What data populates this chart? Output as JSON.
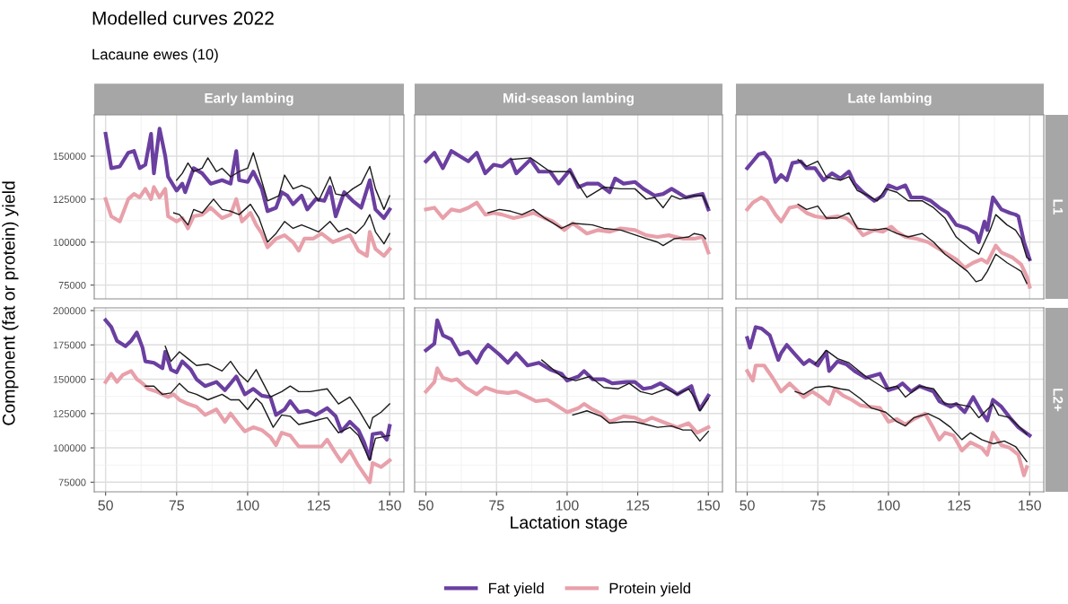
{
  "chart_data": [
    {
      "type": "line",
      "title": "Early lambing",
      "annotations": [
        "Modelled curves 2022",
        "Lacaune ewes (10)"
      ],
      "ylabel": "Component (fat or protein) yield",
      "xlim": [
        46,
        155
      ],
      "ylim": [
        67000,
        174000
      ],
      "xticks": [
        50,
        75,
        100,
        125,
        150
      ],
      "yticks": [
        75000,
        100000,
        125000,
        150000
      ],
      "tick_labels": "y",
      "grid": true,
      "series": [
        {
          "color": "#6b3fa0",
          "x": [
            50,
            52,
            55,
            58,
            60,
            62,
            64,
            66,
            67,
            69,
            71,
            72,
            75,
            77,
            78,
            81,
            84,
            87,
            91,
            94,
            96,
            97,
            100,
            102,
            105,
            107,
            110,
            112,
            114,
            116,
            119,
            121,
            124,
            127,
            129,
            131,
            134,
            137,
            140,
            143,
            145,
            148,
            150
          ],
          "values": [
            163000,
            143000,
            144000,
            152000,
            153000,
            143000,
            145000,
            163000,
            140000,
            166000,
            150000,
            138000,
            130000,
            134000,
            129000,
            143000,
            140000,
            134000,
            136000,
            134000,
            153000,
            136000,
            135000,
            141000,
            131000,
            118000,
            120000,
            129000,
            127000,
            122000,
            127000,
            119000,
            125000,
            124000,
            132000,
            115000,
            129000,
            124000,
            120000,
            136000,
            119000,
            114000,
            119000
          ]
        },
        {
          "color": "#e8a0aa",
          "x": [
            50,
            52,
            55,
            58,
            60,
            62,
            64,
            66,
            67,
            69,
            71,
            72,
            75,
            77,
            79,
            81,
            84,
            87,
            91,
            94,
            96,
            98,
            101,
            103,
            105,
            107,
            110,
            113,
            116,
            118,
            120,
            123,
            126,
            130,
            133,
            136,
            139,
            142,
            143,
            145,
            148,
            150
          ],
          "values": [
            125000,
            115000,
            112000,
            125000,
            128000,
            126000,
            131000,
            125000,
            132000,
            126000,
            131000,
            115000,
            112000,
            114000,
            108000,
            115000,
            116000,
            120000,
            114000,
            116000,
            125000,
            112000,
            117000,
            110000,
            105000,
            97000,
            102000,
            104000,
            100000,
            95000,
            102000,
            102000,
            105000,
            100000,
            102000,
            104000,
            95000,
            92000,
            106000,
            96000,
            92000,
            96000
          ]
        },
        {
          "color": "#1a1a1a",
          "x": [
            75,
            77,
            79,
            81,
            84,
            86,
            89,
            91,
            94,
            97,
            100,
            102,
            104,
            107,
            111,
            113,
            116,
            119,
            122,
            125,
            129,
            131,
            134,
            137,
            140,
            143,
            145,
            148,
            150
          ],
          "values": [
            136000,
            140000,
            146000,
            141000,
            143000,
            149000,
            141000,
            143000,
            138000,
            141000,
            143000,
            152000,
            141000,
            124000,
            127000,
            139000,
            131000,
            133000,
            131000,
            124000,
            138000,
            128000,
            127000,
            131000,
            134000,
            144000,
            131000,
            119000,
            127000
          ]
        },
        {
          "color": "#1a1a1a",
          "x": [
            74,
            76,
            79,
            81,
            84,
            88,
            91,
            94,
            97,
            101,
            104,
            107,
            110,
            113,
            116,
            119,
            122,
            125,
            129,
            132,
            135,
            138,
            141,
            143,
            145,
            148,
            150
          ],
          "values": [
            117000,
            116000,
            110000,
            119000,
            117000,
            125000,
            119000,
            118000,
            116000,
            122000,
            114000,
            100000,
            105000,
            112000,
            108000,
            110000,
            108000,
            106000,
            112000,
            106000,
            108000,
            105000,
            110000,
            116000,
            106000,
            99000,
            105000
          ]
        }
      ]
    },
    {
      "type": "line",
      "title": "Mid-season lambing",
      "xlim": [
        46,
        155
      ],
      "ylim": [
        67000,
        174000
      ],
      "xticks": [
        50,
        75,
        100,
        125,
        150
      ],
      "yticks": [
        75000,
        100000,
        125000,
        150000
      ],
      "tick_labels": false,
      "grid": true,
      "series": [
        {
          "color": "#6b3fa0",
          "x": [
            50,
            53,
            56,
            59,
            62,
            65,
            68,
            71,
            74,
            77,
            80,
            82,
            87,
            90,
            94,
            97,
            101,
            104,
            107,
            111,
            115,
            117,
            120,
            124,
            127,
            131,
            134,
            137,
            142,
            145,
            148,
            150
          ],
          "values": [
            147000,
            152000,
            143000,
            153000,
            150000,
            147000,
            152000,
            140000,
            145000,
            144000,
            148000,
            140000,
            148000,
            141000,
            141000,
            134000,
            142000,
            132000,
            134000,
            134000,
            129000,
            137000,
            134000,
            135000,
            131000,
            127000,
            128000,
            131000,
            126000,
            127000,
            128000,
            119000
          ]
        },
        {
          "color": "#e8a0aa",
          "x": [
            50,
            53,
            56,
            59,
            62,
            65,
            68,
            71,
            74,
            77,
            81,
            84,
            88,
            92,
            95,
            99,
            102,
            107,
            111,
            115,
            119,
            124,
            128,
            132,
            136,
            141,
            145,
            148,
            150
          ],
          "values": [
            119000,
            120000,
            114000,
            119000,
            118000,
            120000,
            123000,
            116000,
            117000,
            116000,
            114000,
            115000,
            117000,
            114000,
            112000,
            107000,
            111000,
            105000,
            107000,
            106000,
            108000,
            107000,
            104000,
            103000,
            104000,
            102000,
            102000,
            103000,
            94000
          ]
        },
        {
          "color": "#1a1a1a",
          "x": [
            80,
            87,
            94,
            101,
            107,
            113,
            119,
            124,
            128,
            131,
            134,
            137,
            140,
            145,
            148,
            150
          ],
          "values": [
            148000,
            149000,
            141000,
            141000,
            126000,
            132000,
            131000,
            131000,
            125000,
            126000,
            120000,
            127000,
            125000,
            127000,
            127000,
            120000
          ]
        },
        {
          "color": "#1a1a1a",
          "x": [
            72,
            76,
            80,
            84,
            88,
            92,
            98,
            102,
            109,
            113,
            119,
            128,
            132,
            134,
            138,
            143,
            145,
            148,
            149
          ],
          "values": [
            117000,
            119000,
            118000,
            116000,
            119000,
            114000,
            108000,
            111000,
            110000,
            108000,
            107000,
            102000,
            100000,
            98000,
            102000,
            103000,
            105000,
            104000,
            102000
          ]
        }
      ]
    },
    {
      "type": "line",
      "title": "Late lambing",
      "annotations": [
        "L1"
      ],
      "xlim": [
        46,
        155
      ],
      "ylim": [
        67000,
        174000
      ],
      "xticks": [
        50,
        75,
        100,
        125,
        150
      ],
      "yticks": [
        75000,
        100000,
        125000,
        150000
      ],
      "tick_labels": false,
      "grid": true,
      "series": [
        {
          "color": "#6b3fa0",
          "x": [
            50,
            52,
            54,
            56,
            58,
            60,
            62,
            64,
            66,
            69,
            71,
            74,
            77,
            80,
            83,
            86,
            88,
            91,
            95,
            98,
            100,
            103,
            106,
            108,
            112,
            115,
            118,
            121,
            124,
            128,
            131,
            132,
            134,
            135,
            137,
            140,
            143,
            145,
            146,
            148,
            150
          ],
          "values": [
            143000,
            147000,
            151000,
            152000,
            148000,
            135000,
            139000,
            136000,
            146000,
            147000,
            143000,
            143000,
            136000,
            140000,
            137000,
            141000,
            134000,
            129000,
            124000,
            127000,
            133000,
            131000,
            133000,
            126000,
            126000,
            124000,
            120000,
            117000,
            110000,
            108000,
            105000,
            100000,
            112000,
            107000,
            126000,
            119000,
            117000,
            116000,
            115000,
            100000,
            90000
          ]
        },
        {
          "color": "#e8a0aa",
          "x": [
            50,
            52,
            55,
            57,
            60,
            62,
            65,
            68,
            71,
            74,
            78,
            82,
            85,
            88,
            91,
            95,
            98,
            101,
            103,
            106,
            110,
            114,
            118,
            121,
            124,
            127,
            130,
            133,
            135,
            138,
            140,
            144,
            147,
            149,
            150
          ],
          "values": [
            119000,
            123000,
            126000,
            124000,
            116000,
            112000,
            120000,
            121000,
            117000,
            115000,
            114000,
            115000,
            114000,
            110000,
            104000,
            107000,
            106000,
            109000,
            106000,
            103000,
            102000,
            100000,
            96000,
            93000,
            90000,
            85000,
            88000,
            90000,
            88000,
            98000,
            94000,
            91000,
            87000,
            80000,
            74000
          ]
        },
        {
          "color": "#1a1a1a",
          "x": [
            68,
            71,
            75,
            78,
            83,
            86,
            89,
            93,
            96,
            99,
            103,
            107,
            112,
            116,
            120,
            124,
            129,
            132,
            134,
            136,
            138,
            142,
            145,
            147,
            149,
            150
          ],
          "values": [
            148000,
            144000,
            147000,
            138000,
            136000,
            138000,
            130000,
            127000,
            124000,
            131000,
            129000,
            124000,
            124000,
            120000,
            114000,
            103000,
            96000,
            93000,
            100000,
            107000,
            116000,
            110000,
            107000,
            102000,
            91000,
            90000
          ]
        },
        {
          "color": "#1a1a1a",
          "x": [
            68,
            71,
            75,
            78,
            82,
            86,
            89,
            95,
            99,
            103,
            107,
            112,
            116,
            120,
            124,
            128,
            131,
            133,
            135,
            138,
            142,
            145,
            147,
            149
          ],
          "values": [
            122000,
            119000,
            121000,
            114000,
            114000,
            117000,
            108000,
            107000,
            108000,
            105000,
            103000,
            105000,
            100000,
            93000,
            88000,
            83000,
            77000,
            78000,
            83000,
            93000,
            88000,
            85000,
            83000,
            76000
          ]
        }
      ]
    },
    {
      "type": "line",
      "xlim": [
        46,
        155
      ],
      "ylim": [
        68000,
        202000
      ],
      "xticks": [
        50,
        75,
        100,
        125,
        150
      ],
      "yticks": [
        75000,
        100000,
        125000,
        150000,
        175000,
        200000
      ],
      "grid": true,
      "series": [
        {
          "color": "#6b3fa0",
          "x": [
            50,
            52,
            54,
            57,
            59,
            61,
            63,
            64,
            67,
            70,
            71,
            73,
            75,
            77,
            80,
            82,
            85,
            89,
            92,
            96,
            99,
            102,
            105,
            108,
            110,
            113,
            115,
            118,
            121,
            124,
            128,
            131,
            133,
            136,
            139,
            141,
            143,
            144,
            147,
            149,
            150
          ],
          "values": [
            193000,
            188000,
            178000,
            174000,
            178000,
            184000,
            173000,
            163000,
            162000,
            158000,
            170000,
            157000,
            155000,
            163000,
            157000,
            150000,
            145000,
            148000,
            142000,
            152000,
            139000,
            143000,
            138000,
            137000,
            124000,
            128000,
            134000,
            126000,
            127000,
            124000,
            129000,
            123000,
            112000,
            119000,
            113000,
            104000,
            92000,
            110000,
            111000,
            106000,
            116000
          ]
        },
        {
          "color": "#e8a0aa",
          "x": [
            50,
            52,
            54,
            56,
            59,
            61,
            63,
            65,
            68,
            72,
            74,
            76,
            79,
            82,
            85,
            89,
            92,
            94,
            97,
            99,
            102,
            105,
            108,
            110,
            112,
            115,
            118,
            122,
            126,
            128,
            131,
            133,
            136,
            139,
            143,
            144,
            147,
            150
          ],
          "values": [
            148000,
            154000,
            148000,
            153000,
            156000,
            150000,
            147000,
            143000,
            141000,
            137000,
            139000,
            135000,
            132000,
            130000,
            124000,
            128000,
            119000,
            125000,
            117000,
            112000,
            115000,
            113000,
            108000,
            102000,
            111000,
            109000,
            101000,
            101000,
            101000,
            106000,
            96000,
            90000,
            98000,
            87000,
            75000,
            89000,
            86000,
            91000
          ]
        },
        {
          "color": "#1a1a1a",
          "x": [
            71,
            73,
            76,
            79,
            82,
            86,
            91,
            94,
            97,
            100,
            103,
            108,
            112,
            115,
            118,
            122,
            128,
            132,
            136,
            139,
            143,
            144,
            147,
            150
          ],
          "values": [
            174000,
            163000,
            170000,
            165000,
            160000,
            161000,
            156000,
            163000,
            154000,
            148000,
            157000,
            137000,
            141000,
            145000,
            141000,
            141000,
            143000,
            132000,
            137000,
            128000,
            114000,
            122000,
            126000,
            132000
          ]
        },
        {
          "color": "#1a1a1a",
          "x": [
            64,
            67,
            70,
            73,
            76,
            79,
            82,
            86,
            91,
            94,
            97,
            100,
            103,
            105,
            109,
            112,
            115,
            118,
            122,
            128,
            132,
            136,
            139,
            143,
            145,
            150
          ],
          "values": [
            145000,
            145000,
            139000,
            140000,
            147000,
            141000,
            139000,
            135000,
            139000,
            135000,
            135000,
            128000,
            136000,
            132000,
            115000,
            124000,
            123000,
            117000,
            119000,
            122000,
            111000,
            115000,
            109000,
            91000,
            107000,
            109000
          ]
        }
      ]
    },
    {
      "type": "line",
      "xlabel": "Lactation stage",
      "legend": "bottom",
      "xlim": [
        46,
        155
      ],
      "ylim": [
        68000,
        202000
      ],
      "xticks": [
        50,
        75,
        100,
        125,
        150
      ],
      "yticks": [
        75000,
        100000,
        125000,
        150000,
        175000,
        200000
      ],
      "tick_labels": "x",
      "grid": true,
      "series": [
        {
          "name": "Fat yield",
          "color": "#6b3fa0",
          "x": [
            50,
            53,
            54,
            56,
            59,
            62,
            65,
            68,
            70,
            72,
            76,
            79,
            82,
            86,
            90,
            94,
            98,
            100,
            104,
            106,
            109,
            113,
            116,
            121,
            124,
            127,
            130,
            133,
            137,
            139,
            144,
            145,
            147,
            150
          ],
          "values": [
            171000,
            176000,
            193000,
            182000,
            179000,
            168000,
            170000,
            162000,
            170000,
            175000,
            168000,
            162000,
            169000,
            160000,
            162000,
            157000,
            154000,
            149000,
            152000,
            156000,
            150000,
            150000,
            147000,
            148000,
            148000,
            143000,
            144000,
            147000,
            142000,
            139000,
            145000,
            138000,
            128000,
            138000
          ]
        },
        {
          "name": "Protein yield",
          "color": "#e8a0aa",
          "x": [
            50,
            53,
            54,
            56,
            59,
            61,
            64,
            68,
            71,
            75,
            79,
            82,
            86,
            89,
            93,
            97,
            100,
            104,
            106,
            109,
            112,
            115,
            120,
            124,
            127,
            130,
            135,
            139,
            143,
            146,
            150
          ],
          "values": [
            141000,
            148000,
            158000,
            151000,
            149000,
            150000,
            144000,
            139000,
            144000,
            141000,
            140000,
            141000,
            137000,
            134000,
            135000,
            130000,
            126000,
            129000,
            132000,
            128000,
            125000,
            119000,
            123000,
            122000,
            119000,
            122000,
            118000,
            115000,
            118000,
            111000,
            115000
          ]
        },
        {
          "color": "#1a1a1a",
          "x": [
            91,
            98,
            103,
            108,
            113,
            118,
            122,
            126,
            130,
            135,
            139,
            143,
            145,
            147,
            150
          ],
          "values": [
            164000,
            152000,
            149000,
            152000,
            144000,
            143000,
            147000,
            141000,
            139000,
            143000,
            139000,
            143000,
            137000,
            127000,
            136000
          ]
        },
        {
          "color": "#1a1a1a",
          "x": [
            102,
            107,
            112,
            115,
            120,
            124,
            128,
            132,
            137,
            141,
            144,
            147,
            150
          ],
          "values": [
            124000,
            127000,
            123000,
            118000,
            119000,
            119000,
            117000,
            115000,
            116000,
            113000,
            113000,
            105000,
            112000
          ]
        }
      ]
    },
    {
      "type": "line",
      "annotations": [
        "L2+"
      ],
      "xlim": [
        46,
        155
      ],
      "ylim": [
        68000,
        202000
      ],
      "xticks": [
        50,
        75,
        100,
        125,
        150
      ],
      "yticks": [
        75000,
        100000,
        125000,
        150000,
        175000,
        200000
      ],
      "tick_labels": "x",
      "grid": true,
      "series": [
        {
          "color": "#6b3fa0",
          "x": [
            50,
            51,
            53,
            55,
            58,
            61,
            62,
            64,
            67,
            70,
            72,
            75,
            78,
            79,
            82,
            85,
            88,
            92,
            97,
            100,
            103,
            105,
            108,
            111,
            116,
            118,
            122,
            124,
            127,
            130,
            133,
            135,
            137,
            140,
            143,
            146,
            150
          ],
          "values": [
            180000,
            173000,
            188000,
            187000,
            182000,
            164000,
            169000,
            175000,
            168000,
            161000,
            164000,
            160000,
            170000,
            156000,
            163000,
            161000,
            156000,
            151000,
            154000,
            142000,
            144000,
            147000,
            141000,
            145000,
            141000,
            134000,
            130000,
            132000,
            126000,
            137000,
            126000,
            120000,
            135000,
            130000,
            122000,
            115000,
            109000
          ]
        },
        {
          "color": "#e8a0aa",
          "x": [
            50,
            52,
            53,
            56,
            59,
            62,
            65,
            68,
            70,
            73,
            76,
            79,
            81,
            84,
            87,
            90,
            93,
            97,
            100,
            103,
            106,
            109,
            113,
            116,
            118,
            120,
            123,
            126,
            129,
            133,
            135,
            137,
            140,
            143,
            146,
            148,
            149
          ],
          "values": [
            156000,
            149000,
            160000,
            160000,
            151000,
            141000,
            147000,
            141000,
            137000,
            141000,
            137000,
            132000,
            143000,
            138000,
            135000,
            131000,
            130000,
            129000,
            119000,
            121000,
            117000,
            121000,
            125000,
            114000,
            106000,
            111000,
            109000,
            98000,
            104000,
            100000,
            95000,
            111000,
            102000,
            100000,
            95000,
            80000,
            86000
          ]
        },
        {
          "color": "#1a1a1a",
          "x": [
            74,
            78,
            82,
            86,
            92,
            99,
            103,
            106,
            111,
            116,
            120,
            124,
            129,
            132,
            137,
            139,
            143,
            149
          ],
          "values": [
            161000,
            171000,
            165000,
            162000,
            152000,
            143000,
            145000,
            137000,
            145000,
            143000,
            132000,
            132000,
            130000,
            122000,
            132000,
            124000,
            122000,
            110000
          ]
        },
        {
          "color": "#1a1a1a",
          "x": [
            67,
            70,
            74,
            79,
            83,
            86,
            90,
            94,
            99,
            103,
            106,
            109,
            114,
            118,
            122,
            126,
            129,
            133,
            137,
            141,
            145,
            149
          ],
          "values": [
            141000,
            139000,
            144000,
            145000,
            143000,
            142000,
            136000,
            129000,
            126000,
            119000,
            116000,
            122000,
            125000,
            121000,
            115000,
            106000,
            111000,
            106000,
            103000,
            105000,
            101000,
            90000
          ]
        }
      ]
    }
  ]
}
